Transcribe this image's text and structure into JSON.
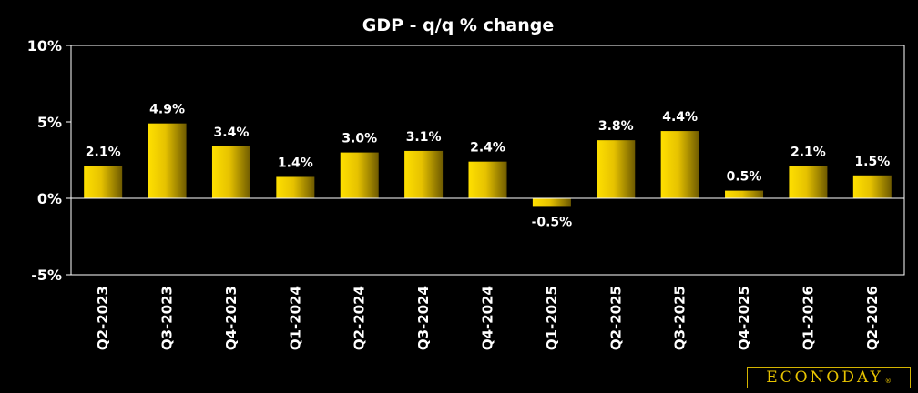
{
  "chart_data": {
    "type": "bar",
    "title": "GDP - q/q % change",
    "categories": [
      "Q2-2023",
      "Q3-2023",
      "Q4-2023",
      "Q1-2024",
      "Q2-2024",
      "Q3-2024",
      "Q4-2024",
      "Q1-2025",
      "Q2-2025",
      "Q3-2025",
      "Q4-2025",
      "Q1-2026",
      "Q2-2026"
    ],
    "values": [
      2.1,
      4.9,
      3.4,
      1.4,
      3.0,
      3.1,
      2.4,
      -0.5,
      3.8,
      4.4,
      0.5,
      2.1,
      1.5
    ],
    "value_labels": [
      "2.1%",
      "4.9%",
      "3.4%",
      "1.4%",
      "3.0%",
      "3.1%",
      "2.4%",
      "-0.5%",
      "3.8%",
      "4.4%",
      "0.5%",
      "2.1%",
      "1.5%"
    ],
    "y_ticks": [
      10,
      5,
      0,
      -5
    ],
    "y_tick_labels": [
      "10%",
      "5%",
      "0%",
      "-5%"
    ],
    "ylim": [
      -5,
      10
    ],
    "xlabel": "",
    "ylabel": "",
    "grid": false,
    "legend": "none",
    "colors": {
      "bar_light": "#ffe000",
      "bar_dark": "#6e5a00",
      "background": "#000000",
      "text": "#ffffff",
      "axis": "#ffffff"
    }
  },
  "branding": {
    "logo_text": "ECONODAY",
    "logo_mark": "®"
  }
}
